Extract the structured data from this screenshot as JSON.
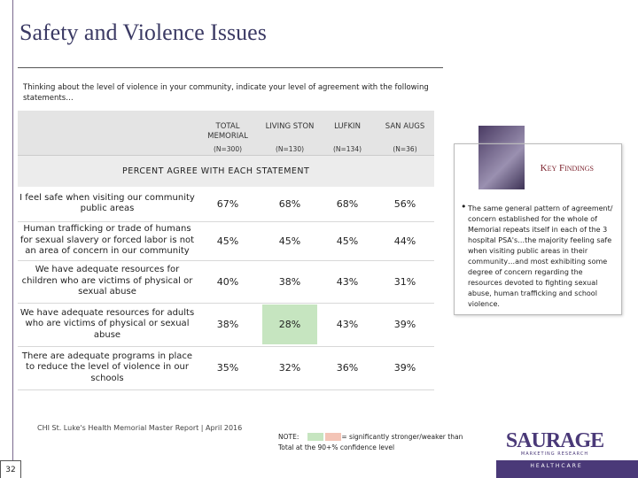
{
  "title": "Safety and Violence Issues",
  "intro": "Thinking about the level of violence in your community, indicate your level of agreement with the following statements…",
  "table": {
    "columns": [
      {
        "name": "TOTAL MEMORIAL",
        "n": "(N=300)"
      },
      {
        "name": "LIVING STON",
        "n": "(N=130)"
      },
      {
        "name": "LUFKIN",
        "n": "(N=134)"
      },
      {
        "name": "SAN AUGS",
        "n": "(N=36)"
      }
    ],
    "section": "PERCENT AGREE WITH EACH STATEMENT",
    "rows": [
      {
        "statement": "I feel safe when visiting our community public areas",
        "cells": [
          "67%",
          "68%",
          "68%",
          "56%"
        ]
      },
      {
        "statement": "Human trafficking or trade of humans for sexual slavery or forced labor is not an area of concern in our community",
        "cells": [
          "45%",
          "45%",
          "45%",
          "44%"
        ]
      },
      {
        "statement": "We have adequate resources for children who are victims of physical or sexual abuse",
        "cells": [
          "40%",
          "38%",
          "43%",
          "31%"
        ]
      },
      {
        "statement": "We have adequate resources for adults who are victims of physical or sexual abuse",
        "cells": [
          "38%",
          "28%",
          "43%",
          "39%"
        ]
      },
      {
        "statement": "There are adequate programs in place to reduce the level of violence in our schools",
        "cells": [
          "35%",
          "32%",
          "36%",
          "39%"
        ]
      }
    ],
    "stronger_cells": [
      [
        3,
        1
      ]
    ]
  },
  "key_findings": {
    "title": "Key Findings",
    "text": "The same general pattern of agreement/ concern established for the whole of Memorial repeats itself in each of the 3 hospital PSA's…the majority feeling safe when visiting public areas in their community…and most exhibiting some degree of concern regarding the resources devoted to fighting sexual abuse, human trafficking and school violence."
  },
  "note": {
    "label": "NOTE:",
    "text": "= significantly stronger/weaker than Total at the 90+% confidence level",
    "stronger_color": "#c6e5c0",
    "weaker_color": "#f3c4b6"
  },
  "footer": "CHI St. Luke's Health Memorial Master Report | April 2016",
  "page_number": "32",
  "logo": {
    "name": "SAURAGE",
    "tagline": "MARKETING RESEARCH",
    "sub": "HEALTHCARE"
  }
}
